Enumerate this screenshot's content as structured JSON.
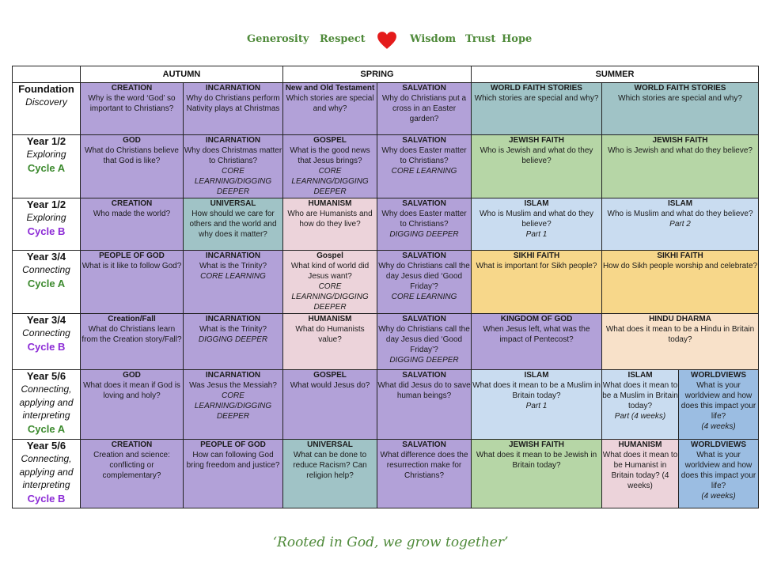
{
  "values": [
    "Generosity",
    "Respect",
    "Wisdom",
    "Trust",
    "Hope"
  ],
  "icons": {
    "heart": "heart-icon",
    "heart_color": "#e41b1b"
  },
  "terms": [
    "AUTUMN",
    "SPRING",
    "SUMMER"
  ],
  "rows": [
    {
      "year": "Foundation",
      "group": "Discovery",
      "cycle": "",
      "cells": [
        {
          "title": "CREATION",
          "question": "Why is the word ‘God’ so important to Christians?",
          "note": ""
        },
        {
          "title": "INCARNATION",
          "question": "Why do Christians perform Nativity plays at Christmas",
          "note": ""
        },
        {
          "title": "New  and Old Testament",
          "question": "Which stories are special and why?",
          "note": ""
        },
        {
          "title": "SALVATION",
          "question": "Why do Christians put a cross in an Easter garden?",
          "note": ""
        },
        {
          "title": "WORLD FAITH STORIES",
          "question": "Which stories are special and why?",
          "note": ""
        },
        {
          "title": "WORLD FAITH STORIES",
          "question": "Which stories are special and why?",
          "note": ""
        }
      ]
    },
    {
      "year": "Year 1/2",
      "group": "Exploring",
      "cycle": "Cycle A",
      "cells": [
        {
          "title": "GOD",
          "question": "What do Christians believe that God is like?",
          "note": ""
        },
        {
          "title": "INCARNATION",
          "question": "Why does Christmas matter to Christians?",
          "note": "CORE LEARNING/DIGGING DEEPER"
        },
        {
          "title": "GOSPEL",
          "question": "What is the good news that Jesus brings?",
          "note": "CORE LEARNING/DIGGING DEEPER"
        },
        {
          "title": "SALVATION",
          "question": "Why does Easter matter to Christians?",
          "note": "CORE LEARNING"
        },
        {
          "title": "JEWISH FAITH",
          "question": "Who is Jewish and what do they believe?",
          "note": ""
        },
        {
          "title": "JEWISH FAITH",
          "question": "Who is Jewish and what do they believe?",
          "note": ""
        }
      ]
    },
    {
      "year": "Year 1/2",
      "group": "Exploring",
      "cycle": "Cycle B",
      "cells": [
        {
          "title": "CREATION",
          "question": "Who made the world?",
          "note": ""
        },
        {
          "title": "UNIVERSAL",
          "question": "How should we care for others and the world and why does it matter?",
          "note": ""
        },
        {
          "title": "HUMANISM",
          "question": "Who are Humanists and how do they live?",
          "note": ""
        },
        {
          "title": "SALVATION",
          "question": "Why does Easter matter to Christians?",
          "note": "DIGGING DEEPER"
        },
        {
          "title": "ISLAM",
          "question": "Who is Muslim and what do they believe?",
          "note": "Part 1"
        },
        {
          "title": "ISLAM",
          "question": "Who is Muslim and what do they believe?",
          "note": "Part 2"
        }
      ]
    },
    {
      "year": "Year 3/4",
      "group": "Connecting",
      "cycle": "Cycle A",
      "cells": [
        {
          "title": "PEOPLE OF GOD",
          "question": "What is it like to follow God?",
          "note": ""
        },
        {
          "title": "INCARNATION",
          "question": "What is the Trinity?",
          "note": "CORE LEARNING"
        },
        {
          "title": "Gospel",
          "question": "What kind of world did Jesus want?",
          "note": "CORE LEARNING/DIGGING DEEPER"
        },
        {
          "title": "SALVATION",
          "question": "Why do Christians call the day Jesus died ‘Good Friday’?",
          "note": "CORE LEARNING"
        },
        {
          "title": "SIKHI FAITH",
          "question": "What is important for Sikh people?",
          "note": ""
        },
        {
          "title": "SIKHI FAITH",
          "question": "How do Sikh people worship and celebrate?",
          "note": ""
        }
      ]
    },
    {
      "year": "Year 3/4",
      "group": "Connecting",
      "cycle": "Cycle B",
      "cells": [
        {
          "title": "Creation/Fall",
          "question": "What do Christians learn from the Creation story/Fall?",
          "note": ""
        },
        {
          "title": "INCARNATION",
          "question": "What is the Trinity?",
          "note": "DIGGING DEEPER"
        },
        {
          "title": "HUMANISM",
          "question": "What do Humanists value?",
          "note": ""
        },
        {
          "title": "SALVATION",
          "question": "Why do Christians call the day Jesus died ‘Good Friday’?",
          "note": "DIGGING DEEPER"
        },
        {
          "title": "KINGDOM OF GOD",
          "question": "When Jesus left, what was the impact of Pentecost?",
          "note": ""
        },
        {
          "title": "HINDU DHARMA",
          "question": "What does it mean to be a Hindu in Britain today?",
          "note": ""
        }
      ]
    },
    {
      "year": "Year 5/6",
      "group": "Connecting, applying and interpreting",
      "cycle": "Cycle A",
      "cells": [
        {
          "title": "GOD",
          "question": "What does it mean if God is loving and holy?",
          "note": ""
        },
        {
          "title": "INCARNATION",
          "question": "Was Jesus the Messiah?",
          "note": "CORE LEARNING/DIGGING DEEPER"
        },
        {
          "title": "GOSPEL",
          "question": "What would Jesus do?",
          "note": ""
        },
        {
          "title": "SALVATION",
          "question": "What did Jesus do to save human beings?",
          "note": ""
        },
        {
          "title": "ISLAM",
          "question": "What does it mean to be a Muslim in Britain today?",
          "note": "Part 1"
        },
        {
          "title": "ISLAM",
          "question": "What does it mean to be a Muslim in Britain today?",
          "note": "Part (4 weeks)"
        },
        {
          "title": "WORLDVIEWS",
          "question": "What is your worldview and how does this impact your life?",
          "note": "(4 weeks)"
        }
      ]
    },
    {
      "year": "Year 5/6",
      "group": "Connecting, applying and interpreting",
      "cycle": "Cycle B",
      "cells": [
        {
          "title": "CREATION",
          "question": "Creation and science: conflicting or complementary?",
          "note": ""
        },
        {
          "title": "PEOPLE OF GOD",
          "question": "How can following God bring freedom and justice?",
          "note": ""
        },
        {
          "title": "UNIVERSAL",
          "question": "What can be done to reduce Racism? Can religion help?",
          "note": ""
        },
        {
          "title": "SALVATION",
          "question": "What difference does the resurrection make for Christians?",
          "note": ""
        },
        {
          "title": "JEWISH FAITH",
          "question": "What does it mean to be Jewish in Britain today?",
          "note": ""
        },
        {
          "title": "HUMANISM",
          "question": "What does it mean to be Humanist in Britain today? (4 weeks)",
          "note": ""
        },
        {
          "title": "WORLDVIEWS",
          "question": "What is your worldview and how does this impact your life?",
          "note": "(4 weeks)"
        }
      ]
    }
  ],
  "motto": "‘Rooted in God, we grow together’"
}
